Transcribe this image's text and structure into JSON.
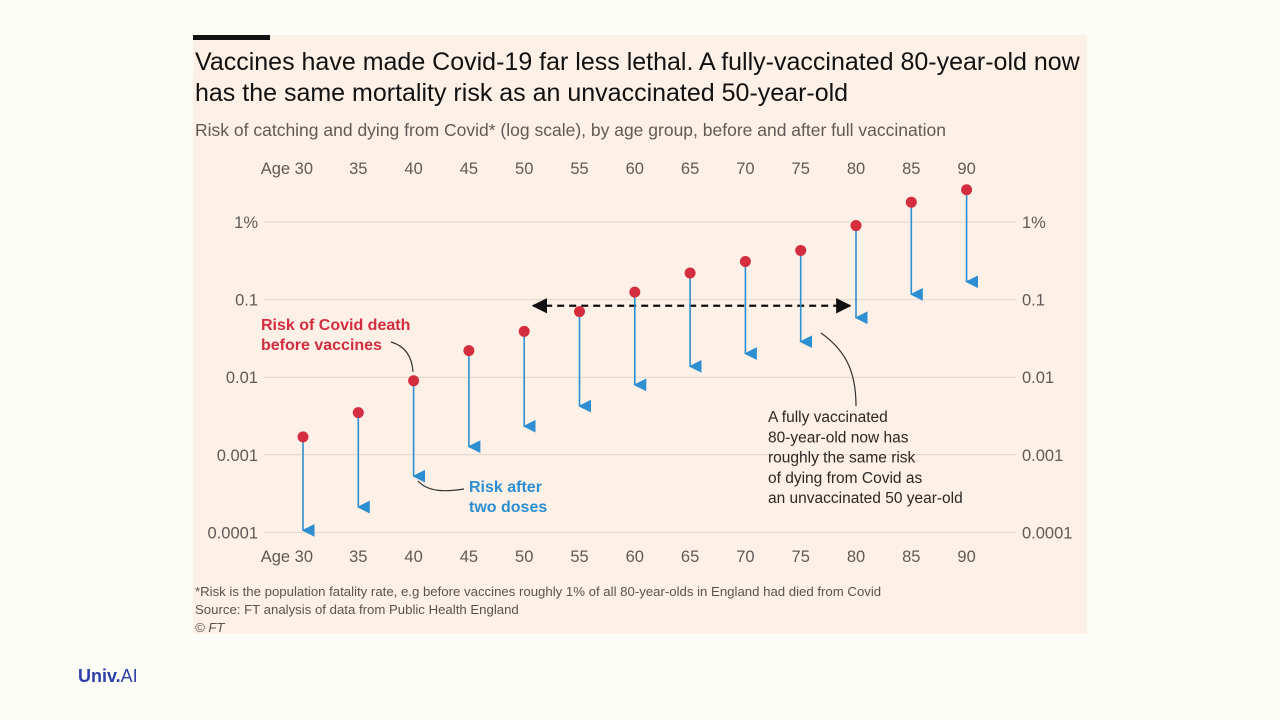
{
  "header": {
    "title": "Vaccines have made Covid-19 far less lethal. A fully-vaccinated 80-year-old now has the same mortality risk as an unvaccinated 50-year-old",
    "subtitle": "Risk of catching and dying from Covid* (log scale), by age group, before and after full vaccination"
  },
  "footer": {
    "note": "*Risk is the population fatality rate, e.g before vaccines roughly 1% of all 80-year-olds in England had died from Covid",
    "source": "Source: FT analysis of data from Public Health England",
    "copyright": "© FT"
  },
  "brand": {
    "name": "Univ.",
    "suffix": "AI",
    "color": "#2d3fa8"
  },
  "colors": {
    "before": "#d42d3f",
    "after": "#2d8fd1",
    "grid": "#e2d6cc",
    "text": "#5f5a57"
  },
  "chart_data": {
    "type": "scatter",
    "scale": "log",
    "x_tick_labels": [
      "Age 30",
      "35",
      "40",
      "45",
      "50",
      "55",
      "60",
      "65",
      "70",
      "75",
      "80",
      "85",
      "90"
    ],
    "y_ticks": [
      0.0001,
      0.001,
      0.01,
      0.1,
      1
    ],
    "y_tick_labels": [
      "0.0001",
      "0.001",
      "0.01",
      "0.1",
      "1%"
    ],
    "ylim": [
      0.0001,
      3
    ],
    "series": [
      {
        "name": "Risk of Covid death before vaccines",
        "values": [
          0.0017,
          0.0035,
          0.009,
          0.022,
          0.039,
          0.07,
          0.125,
          0.22,
          0.31,
          0.43,
          0.9,
          1.8,
          2.6
        ]
      },
      {
        "name": "Risk after two doses",
        "values": [
          0.0001,
          0.0002,
          0.0005,
          0.0012,
          0.0022,
          0.004,
          0.0075,
          0.013,
          0.019,
          0.027,
          0.055,
          0.11,
          0.16
        ]
      }
    ],
    "annotations": {
      "before_label": [
        "Risk of Covid death",
        "before vaccines"
      ],
      "after_label": [
        "Risk after",
        "two doses"
      ],
      "comparison_label": [
        "A fully vaccinated",
        "80-year-old now has",
        "roughly the same risk",
        "of dying from Covid as",
        "an unvaccinated 50 year-old"
      ]
    }
  }
}
